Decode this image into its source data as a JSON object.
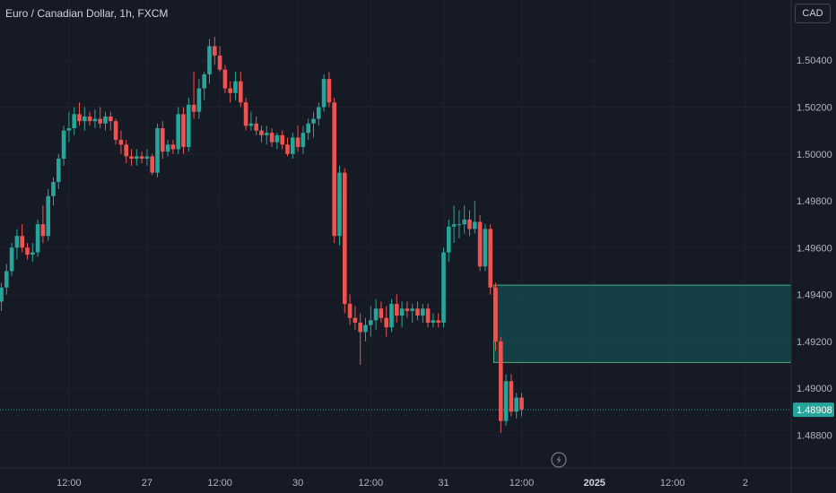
{
  "header": {
    "title": "Euro / Canadian Dollar, 1h, FXCM",
    "currency": "CAD"
  },
  "colors": {
    "up": "#26a69a",
    "down": "#ef5350",
    "background": "#161a25",
    "grid": "#1e222d",
    "zone_fill": "#14484b",
    "zone_border": "#4caf80",
    "price_line": "#26a69a"
  },
  "chart_data": {
    "type": "candlestick",
    "symbol": "EURCAD",
    "interval": "1h",
    "yticks": [
      "1.50400",
      "1.50200",
      "1.50000",
      "1.49800",
      "1.49600",
      "1.49400",
      "1.49200",
      "1.49000",
      "1.48800"
    ],
    "ylim": [
      1.4866,
      1.5055
    ],
    "xlabels": [
      "12:00",
      "27",
      "12:00",
      "30",
      "12:00",
      "31",
      "12:00",
      "2025",
      "12:00",
      "2"
    ],
    "xlabel_bold": [
      "2025"
    ],
    "current_price": {
      "value": 1.48908,
      "label": "1.48908"
    },
    "zone": {
      "from_index": 95,
      "top": 1.4944,
      "bottom": 1.4911
    },
    "label_bar_index": [
      13,
      28,
      42,
      57,
      71,
      85,
      100,
      114,
      129,
      143
    ],
    "candles": [
      [
        1.4937,
        1.4945,
        1.4933,
        1.4943
      ],
      [
        1.4943,
        1.4953,
        1.494,
        1.495
      ],
      [
        1.495,
        1.4962,
        1.4948,
        1.496
      ],
      [
        1.496,
        1.4968,
        1.4955,
        1.4965
      ],
      [
        1.4965,
        1.497,
        1.4958,
        1.496
      ],
      [
        1.496,
        1.4962,
        1.4955,
        1.4957
      ],
      [
        1.4957,
        1.4962,
        1.4954,
        1.4958
      ],
      [
        1.4958,
        1.4972,
        1.4956,
        1.497
      ],
      [
        1.497,
        1.4978,
        1.4962,
        1.4965
      ],
      [
        1.4965,
        1.4985,
        1.4963,
        1.4982
      ],
      [
        1.4982,
        1.499,
        1.4978,
        1.4988
      ],
      [
        1.4988,
        1.5,
        1.4985,
        1.4998
      ],
      [
        1.4998,
        1.5012,
        1.4995,
        1.501
      ],
      [
        1.501,
        1.5018,
        1.5005,
        1.5011
      ],
      [
        1.5011,
        1.502,
        1.5008,
        1.5017
      ],
      [
        1.5017,
        1.5022,
        1.5012,
        1.5014
      ],
      [
        1.5014,
        1.502,
        1.501,
        1.5016
      ],
      [
        1.5016,
        1.5018,
        1.5012,
        1.5014
      ],
      [
        1.5014,
        1.5019,
        1.5011,
        1.5015
      ],
      [
        1.5015,
        1.502,
        1.5011,
        1.5013
      ],
      [
        1.5013,
        1.5018,
        1.501,
        1.5016
      ],
      [
        1.5016,
        1.5018,
        1.501,
        1.5014
      ],
      [
        1.5014,
        1.5015,
        1.5004,
        1.5006
      ],
      [
        1.5006,
        1.501,
        1.5,
        1.5004
      ],
      [
        1.5004,
        1.5006,
        1.4996,
        1.4999
      ],
      [
        1.4999,
        1.5002,
        1.4995,
        1.4998
      ],
      [
        1.4998,
        1.5002,
        1.4995,
        1.4999
      ],
      [
        1.4999,
        1.5001,
        1.4996,
        1.4998
      ],
      [
        1.4998,
        1.5002,
        1.4995,
        1.4999
      ],
      [
        1.4999,
        1.5,
        1.4991,
        1.4992
      ],
      [
        1.4992,
        1.5013,
        1.499,
        1.5011
      ],
      [
        1.5011,
        1.5014,
        1.4998,
        1.5001
      ],
      [
        1.5001,
        1.5006,
        1.4999,
        1.5004
      ],
      [
        1.5004,
        1.5006,
        1.5,
        1.5002
      ],
      [
        1.5002,
        1.502,
        1.5,
        1.5017
      ],
      [
        1.5017,
        1.502,
        1.5,
        1.5003
      ],
      [
        1.5003,
        1.5024,
        1.5001,
        1.5021
      ],
      [
        1.5021,
        1.5035,
        1.5015,
        1.5018
      ],
      [
        1.5018,
        1.5032,
        1.5015,
        1.5028
      ],
      [
        1.5028,
        1.5035,
        1.5023,
        1.5034
      ],
      [
        1.5034,
        1.5049,
        1.503,
        1.5046
      ],
      [
        1.5046,
        1.505,
        1.5038,
        1.5042
      ],
      [
        1.5042,
        1.5046,
        1.5035,
        1.5036
      ],
      [
        1.5036,
        1.5038,
        1.5026,
        1.5028
      ],
      [
        1.5028,
        1.5031,
        1.5022,
        1.5026
      ],
      [
        1.5026,
        1.5035,
        1.5023,
        1.5031
      ],
      [
        1.5031,
        1.5035,
        1.502,
        1.5022
      ],
      [
        1.5022,
        1.5024,
        1.501,
        1.5012
      ],
      [
        1.5012,
        1.5018,
        1.501,
        1.5013
      ],
      [
        1.5013,
        1.5016,
        1.5008,
        1.501
      ],
      [
        1.501,
        1.5012,
        1.5005,
        1.5008
      ],
      [
        1.5008,
        1.5012,
        1.5004,
        1.5009
      ],
      [
        1.5009,
        1.5011,
        1.5003,
        1.5005
      ],
      [
        1.5005,
        1.5009,
        1.5002,
        1.5008
      ],
      [
        1.5008,
        1.501,
        1.5002,
        1.5004
      ],
      [
        1.5004,
        1.5007,
        1.4999,
        1.5
      ],
      [
        1.5,
        1.5009,
        1.4998,
        1.5007
      ],
      [
        1.5007,
        1.5012,
        1.5001,
        1.5003
      ],
      [
        1.5003,
        1.5012,
        1.5,
        1.5009
      ],
      [
        1.5009,
        1.5015,
        1.5006,
        1.5013
      ],
      [
        1.5013,
        1.5018,
        1.5007,
        1.5015
      ],
      [
        1.5015,
        1.5022,
        1.5012,
        1.502
      ],
      [
        1.502,
        1.5034,
        1.5018,
        1.5032
      ],
      [
        1.5032,
        1.5035,
        1.502,
        1.5022
      ],
      [
        1.5022,
        1.5024,
        1.4962,
        1.4965
      ],
      [
        1.4965,
        1.4995,
        1.4961,
        1.4992
      ],
      [
        1.4992,
        1.4994,
        1.4932,
        1.4936
      ],
      [
        1.4936,
        1.494,
        1.4927,
        1.493
      ],
      [
        1.493,
        1.4935,
        1.4925,
        1.4928
      ],
      [
        1.4928,
        1.4932,
        1.491,
        1.4924
      ],
      [
        1.4924,
        1.493,
        1.492,
        1.4927
      ],
      [
        1.4927,
        1.4935,
        1.4922,
        1.4929
      ],
      [
        1.4929,
        1.4938,
        1.4925,
        1.4934
      ],
      [
        1.4934,
        1.4937,
        1.4928,
        1.493
      ],
      [
        1.493,
        1.4935,
        1.4922,
        1.4926
      ],
      [
        1.4926,
        1.4938,
        1.4924,
        1.4936
      ],
      [
        1.4936,
        1.494,
        1.4928,
        1.4931
      ],
      [
        1.4931,
        1.4937,
        1.4926,
        1.4934
      ],
      [
        1.4934,
        1.4937,
        1.493,
        1.4933
      ],
      [
        1.4933,
        1.4936,
        1.4928,
        1.4934
      ],
      [
        1.4934,
        1.4937,
        1.4929,
        1.4931
      ],
      [
        1.4931,
        1.4936,
        1.4928,
        1.4934
      ],
      [
        1.4934,
        1.4936,
        1.4926,
        1.4928
      ],
      [
        1.4928,
        1.4932,
        1.4926,
        1.4929
      ],
      [
        1.4929,
        1.4932,
        1.4926,
        1.4928
      ],
      [
        1.4928,
        1.496,
        1.4926,
        1.4958
      ],
      [
        1.4958,
        1.4972,
        1.4954,
        1.4969
      ],
      [
        1.4969,
        1.4978,
        1.4962,
        1.497
      ],
      [
        1.497,
        1.4976,
        1.4964,
        1.497
      ],
      [
        1.497,
        1.4978,
        1.4966,
        1.4972
      ],
      [
        1.4972,
        1.4976,
        1.4965,
        1.4968
      ],
      [
        1.4968,
        1.498,
        1.4966,
        1.4971
      ],
      [
        1.4971,
        1.4974,
        1.495,
        1.4952
      ],
      [
        1.4952,
        1.497,
        1.495,
        1.4968
      ],
      [
        1.4968,
        1.497,
        1.494,
        1.4943
      ],
      [
        1.4943,
        1.4945,
        1.4916,
        1.492
      ],
      [
        1.492,
        1.4922,
        1.4881,
        1.4886
      ],
      [
        1.4886,
        1.4906,
        1.4884,
        1.4903
      ],
      [
        1.4903,
        1.4906,
        1.4888,
        1.489
      ],
      [
        1.489,
        1.4898,
        1.4887,
        1.4896
      ],
      [
        1.4896,
        1.4898,
        1.4888,
        1.4891
      ]
    ]
  }
}
